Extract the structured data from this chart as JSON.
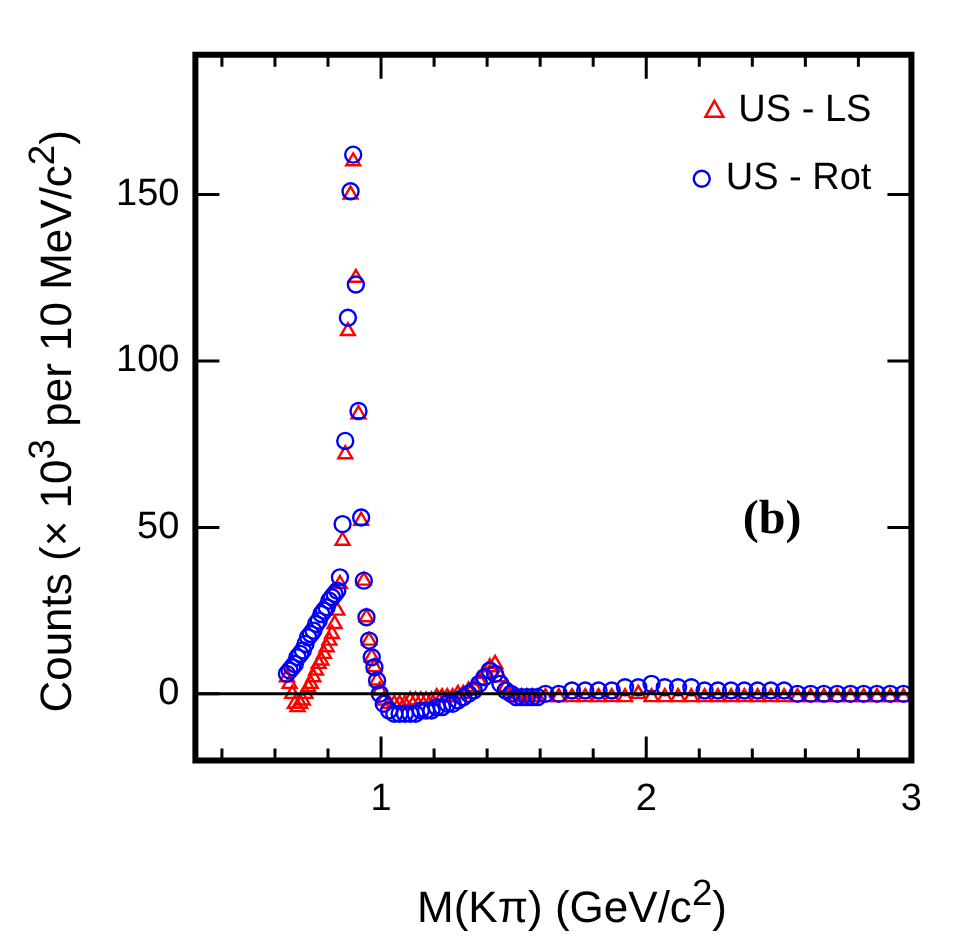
{
  "chart_data": {
    "type": "scatter",
    "xlabel": "M(Kπ) (GeV/c$^{2}$)",
    "ylabel": "Counts (× 10$^{3}$ per 10 MeV/c$^{2}$)",
    "annotations": [
      "(b)"
    ],
    "x": [
      0.645,
      0.655,
      0.665,
      0.675,
      0.685,
      0.695,
      0.705,
      0.715,
      0.725,
      0.735,
      0.745,
      0.755,
      0.765,
      0.775,
      0.785,
      0.795,
      0.805,
      0.815,
      0.825,
      0.835,
      0.845,
      0.855,
      0.865,
      0.875,
      0.885,
      0.895,
      0.905,
      0.915,
      0.925,
      0.935,
      0.945,
      0.955,
      0.965,
      0.975,
      0.985,
      0.995,
      1.01,
      1.03,
      1.05,
      1.07,
      1.09,
      1.11,
      1.13,
      1.15,
      1.17,
      1.19,
      1.21,
      1.23,
      1.25,
      1.27,
      1.29,
      1.31,
      1.33,
      1.35,
      1.37,
      1.39,
      1.41,
      1.43,
      1.45,
      1.47,
      1.49,
      1.51,
      1.53,
      1.55,
      1.57,
      1.59,
      1.62,
      1.67,
      1.72,
      1.77,
      1.82,
      1.87,
      1.92,
      1.97,
      2.02,
      2.07,
      2.12,
      2.17,
      2.22,
      2.27,
      2.32,
      2.37,
      2.42,
      2.47,
      2.52,
      2.57,
      2.62,
      2.67,
      2.72,
      2.77,
      2.82,
      2.87,
      2.92,
      2.97
    ],
    "series": [
      {
        "name": "US - LS",
        "color": "#ff0000",
        "marker": "triangle",
        "values": [
          5,
          3,
          0,
          -3,
          -4,
          -3,
          -2,
          0,
          2,
          3,
          5,
          7,
          9,
          10,
          12,
          14,
          16,
          18,
          21,
          25,
          33,
          46,
          72,
          109,
          150,
          160,
          125,
          84,
          52,
          34,
          23,
          16,
          11,
          8,
          4,
          1,
          -2,
          -3,
          -3,
          -3,
          -3,
          -2,
          -2,
          -2,
          -2,
          -2,
          -1,
          -1,
          -1,
          -1,
          0,
          0,
          1,
          2,
          4,
          6,
          8,
          9,
          5,
          2,
          0,
          -1,
          -1,
          -1,
          -1,
          -1,
          -1,
          -1,
          -1,
          -1,
          -1,
          -1,
          -1,
          0,
          -1,
          -1,
          -1,
          -1,
          -1,
          -1,
          -1,
          -1,
          -1,
          -1,
          -1,
          -1,
          -1,
          -1,
          -1,
          -1,
          -1,
          -1,
          -1,
          -1
        ]
      },
      {
        "name": "US - Rot",
        "color": "#0000ff",
        "marker": "circle",
        "values": [
          6,
          7,
          8,
          9,
          11,
          12,
          13,
          15,
          17,
          18,
          19,
          21,
          22,
          24,
          25,
          26,
          28,
          29,
          30,
          31,
          35,
          51,
          76,
          113,
          151,
          162,
          123,
          85,
          53,
          34,
          23,
          16,
          11,
          8,
          4,
          0,
          -3,
          -5,
          -6,
          -6,
          -6,
          -6,
          -6,
          -5,
          -5,
          -5,
          -4,
          -4,
          -3,
          -3,
          -2,
          -1,
          0,
          1,
          3,
          5,
          7,
          6,
          3,
          1,
          0,
          -1,
          -1,
          -1,
          -1,
          -1,
          0,
          0,
          1,
          1,
          1,
          1,
          2,
          2,
          3,
          2,
          2,
          2,
          1,
          1,
          1,
          1,
          1,
          1,
          1,
          0,
          0,
          0,
          0,
          0,
          0,
          0,
          0,
          0
        ]
      }
    ],
    "xlim": [
      0.3,
      3
    ],
    "xticks": [
      {
        "value": 0.4,
        "label": null
      },
      {
        "value": 0.6,
        "label": null
      },
      {
        "value": 0.8,
        "label": null
      },
      1,
      {
        "value": 1.2,
        "label": null
      },
      {
        "value": 1.4,
        "label": null
      },
      {
        "value": 1.6,
        "label": null
      },
      {
        "value": 1.8,
        "label": null
      },
      2,
      {
        "value": 2.2,
        "label": null
      },
      {
        "value": 2.4,
        "label": null
      },
      {
        "value": 2.6,
        "label": null
      },
      {
        "value": 2.8,
        "label": null
      },
      3
    ],
    "ylim": [
      -20,
      192
    ],
    "yticks": [
      0,
      50,
      100,
      150
    ],
    "ref_lines": [
      {
        "axis": "y",
        "value": 0,
        "color": "#000000"
      }
    ],
    "grid": false,
    "legend": "top right"
  }
}
